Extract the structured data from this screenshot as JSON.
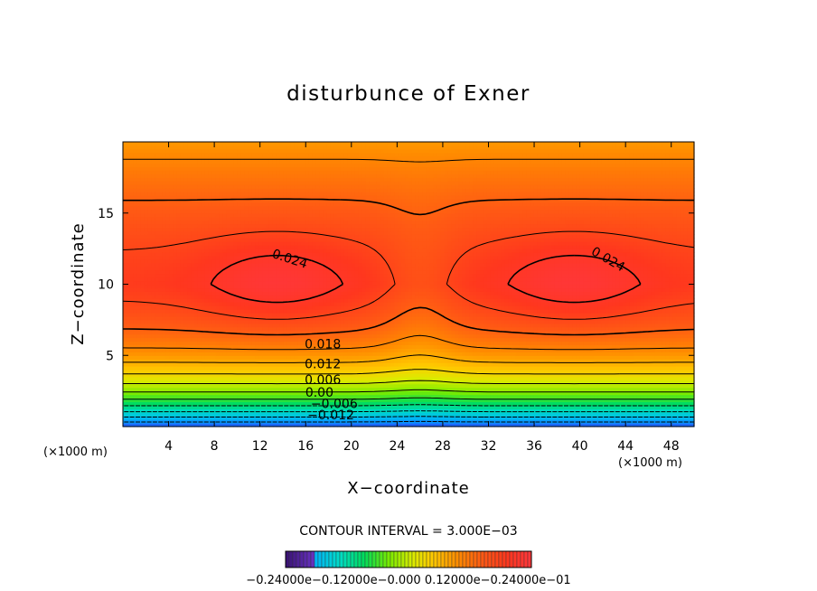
{
  "chart_data": {
    "type": "contour",
    "title": "disturbunce of Exner",
    "xlabel": "X−coordinate",
    "ylabel": "Z−coordinate",
    "x_unit_left": "(×1000 m)",
    "x_unit_right": "(×1000 m)",
    "xlim": [
      0,
      50
    ],
    "ylim": [
      0,
      20
    ],
    "x_ticks": [
      4,
      8,
      12,
      16,
      20,
      24,
      28,
      32,
      36,
      40,
      44,
      48
    ],
    "y_ticks": [
      5,
      10,
      15
    ],
    "contour_interval_text": "CONTOUR INTERVAL = 3.000E−03",
    "contour_labels": [
      {
        "text": "0.024",
        "x": 14.5,
        "z": 11.5
      },
      {
        "text": "0.024",
        "x": 42.3,
        "z": 11.5
      },
      {
        "text": "0.018",
        "x": 17.5,
        "z": 5.5
      },
      {
        "text": "0.012",
        "x": 17.5,
        "z": 4.1
      },
      {
        "text": "0.006",
        "x": 17.5,
        "z": 3.0
      },
      {
        "text": "0.00",
        "x": 17.2,
        "z": 2.1
      },
      {
        "text": "−0.006",
        "x": 18.5,
        "z": 1.3
      },
      {
        "text": "−0.012",
        "x": 18.2,
        "z": 0.5
      }
    ],
    "contour_levels": [
      -0.012,
      -0.009,
      -0.006,
      -0.003,
      0.0,
      0.003,
      0.006,
      0.009,
      0.012,
      0.015,
      0.018,
      0.021,
      0.024
    ],
    "field": {
      "description_free": true,
      "max_value": 0.027,
      "min_value": -0.015,
      "centers": [
        {
          "x": 13.5,
          "z": 10.2
        },
        {
          "x": 39.5,
          "z": 10.2
        }
      ]
    },
    "colorbar": {
      "min": -0.024,
      "max": 0.024,
      "label_text": "−0.24000e−0.12000e−0.000 0.12000e−0.24000e−01"
    },
    "colors": {
      "high": "#ff3535",
      "mid": "#ffdd00",
      "low": "#1f6bff"
    }
  }
}
